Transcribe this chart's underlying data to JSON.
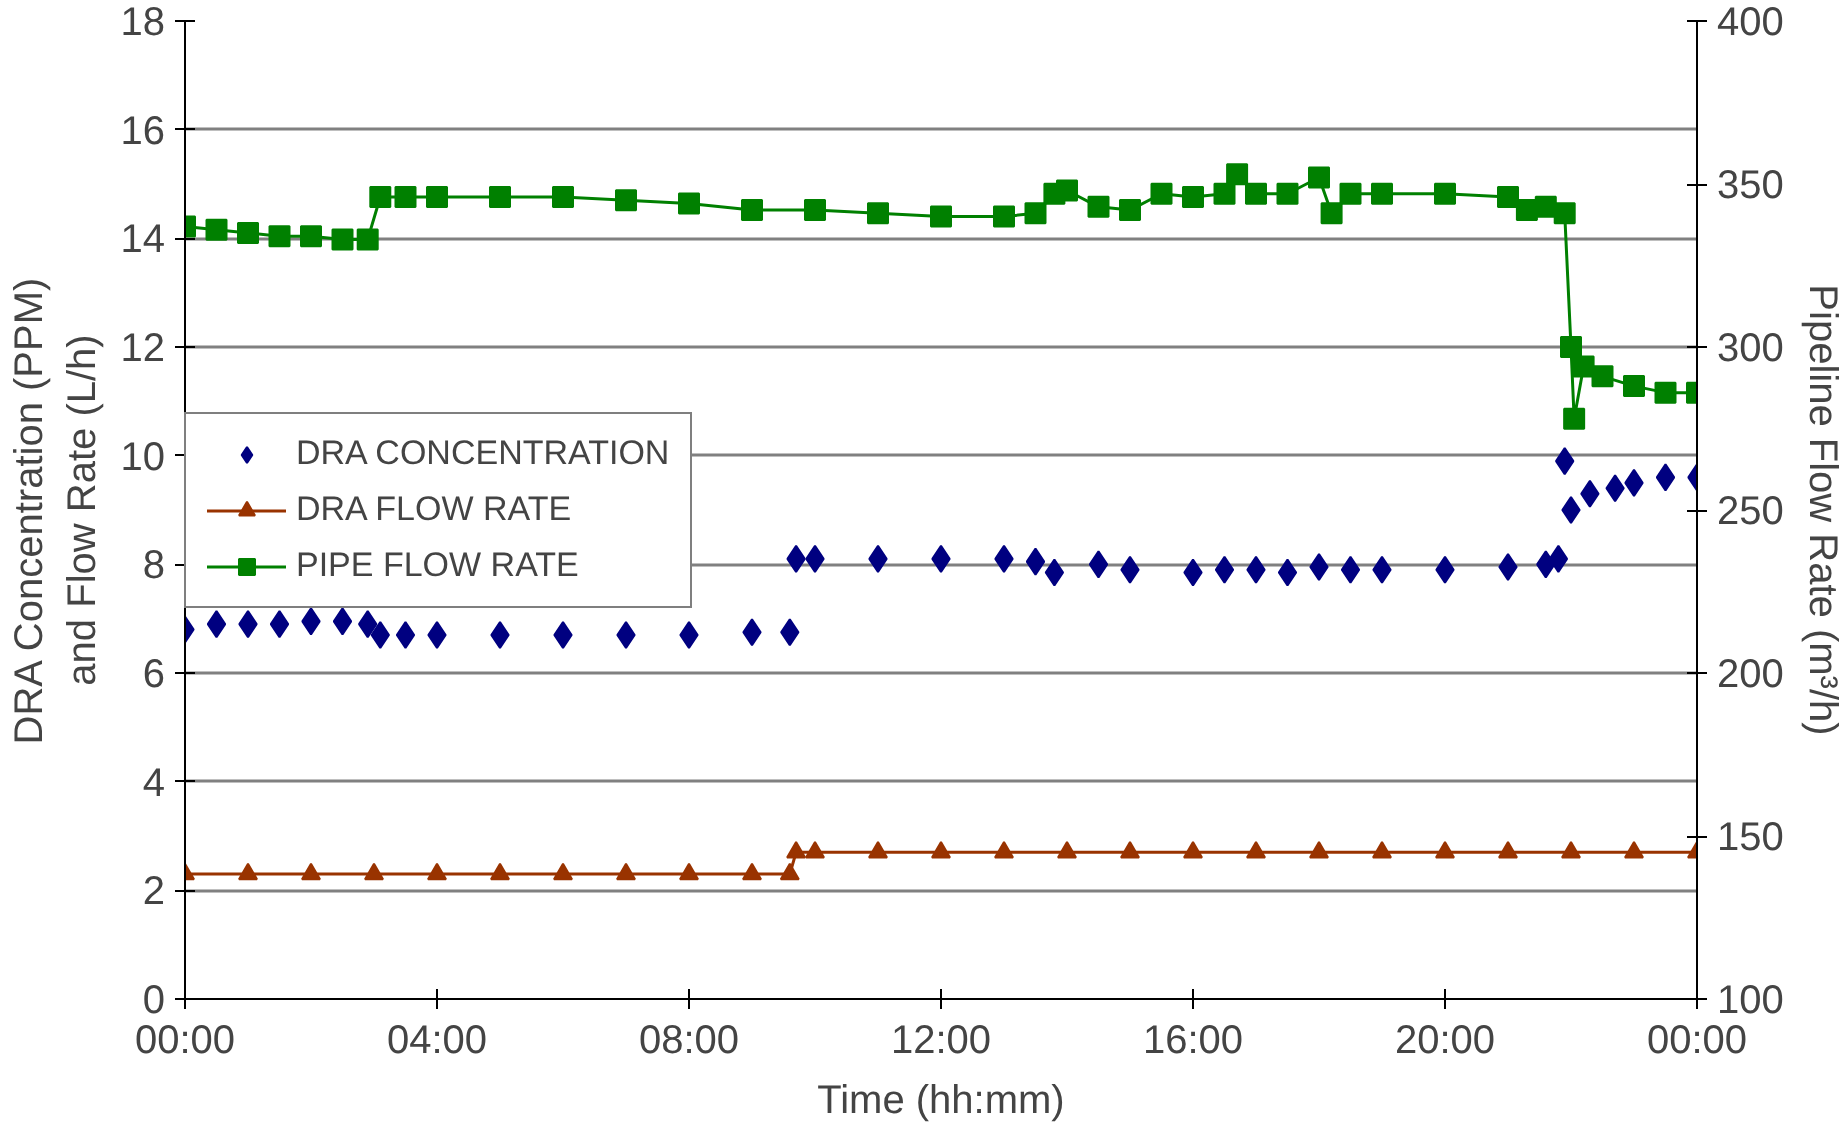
{
  "chart_data": {
    "type": "line",
    "xlabel": "Time (hh:mm)",
    "ylabel": "DRA Concentration (PPM)\nand Flow Rate (L/h)",
    "y2label": "Pipeline Flow Rate (m³/h)",
    "xlim": [
      0,
      24
    ],
    "xticks": [
      {
        "value": 0,
        "label": "00:00"
      },
      {
        "value": 4,
        "label": "04:00"
      },
      {
        "value": 8,
        "label": "08:00"
      },
      {
        "value": 12,
        "label": "12:00"
      },
      {
        "value": 16,
        "label": "16:00"
      },
      {
        "value": 20,
        "label": "20:00"
      },
      {
        "value": 24,
        "label": "00:00"
      }
    ],
    "ylim": [
      0,
      18
    ],
    "yticks": [
      0,
      2,
      4,
      6,
      8,
      10,
      12,
      14,
      16,
      18
    ],
    "y2lim": [
      100,
      400
    ],
    "y2ticks": [
      100,
      150,
      200,
      250,
      300,
      350,
      400
    ],
    "grid": "y",
    "legend": "left",
    "series": [
      {
        "name": "DRA CONCENTRATION",
        "type": "scatter",
        "marker": "diamond",
        "color": "#000080",
        "x": [
          0,
          0.5,
          1,
          1.5,
          2,
          2.5,
          2.9,
          3.1,
          3.5,
          4,
          5,
          6,
          7,
          8,
          9,
          9.6,
          9.7,
          10,
          11,
          12,
          13,
          13.5,
          13.8,
          14.5,
          15,
          16,
          16.5,
          17,
          17.5,
          18,
          18.5,
          19,
          20,
          21,
          21.6,
          21.8,
          21.9,
          22,
          22.3,
          22.7,
          23,
          23.5,
          24
        ],
        "values": [
          6.8,
          6.9,
          6.9,
          6.9,
          6.95,
          6.95,
          6.9,
          6.7,
          6.7,
          6.7,
          6.7,
          6.7,
          6.7,
          6.7,
          6.75,
          6.75,
          8.1,
          8.1,
          8.1,
          8.1,
          8.1,
          8.05,
          7.85,
          8.0,
          7.9,
          7.85,
          7.9,
          7.9,
          7.85,
          7.95,
          7.9,
          7.9,
          7.9,
          7.95,
          8.0,
          8.1,
          9.9,
          9.0,
          9.3,
          9.4,
          9.5,
          9.6,
          9.6
        ]
      },
      {
        "name": "DRA FLOW RATE",
        "marker": "triangle",
        "color": "#993300",
        "x": [
          0,
          1,
          2,
          3,
          4,
          5,
          6,
          7,
          8,
          9,
          9.6,
          9.7,
          10,
          11,
          12,
          13,
          14,
          15,
          16,
          17,
          18,
          19,
          20,
          21,
          22,
          23,
          24
        ],
        "values": [
          2.3,
          2.3,
          2.3,
          2.3,
          2.3,
          2.3,
          2.3,
          2.3,
          2.3,
          2.3,
          2.3,
          2.7,
          2.7,
          2.7,
          2.7,
          2.7,
          2.7,
          2.7,
          2.7,
          2.7,
          2.7,
          2.7,
          2.7,
          2.7,
          2.7,
          2.7,
          2.7
        ]
      },
      {
        "name": "PIPE FLOW RATE",
        "marker": "square",
        "axis": "y2",
        "color": "#008000",
        "x": [
          0,
          0.5,
          1,
          1.5,
          2,
          2.5,
          2.9,
          3.1,
          3.5,
          4,
          5,
          6,
          7,
          8,
          9,
          10,
          11,
          12,
          13,
          13.5,
          13.8,
          14,
          14.5,
          15,
          15.5,
          16,
          16.5,
          16.7,
          17,
          17.5,
          18,
          18.2,
          18.5,
          19,
          20,
          21,
          21.3,
          21.6,
          21.9,
          22,
          22.05,
          22.2,
          22.5,
          23,
          23.5,
          24
        ],
        "values": [
          337,
          336,
          335,
          334,
          334,
          333,
          333,
          346,
          346,
          346,
          346,
          346,
          345,
          344,
          342,
          342,
          341,
          340,
          340,
          341,
          347,
          348,
          343,
          342,
          347,
          346,
          347,
          353,
          347,
          347,
          352,
          341,
          347,
          347,
          347,
          346,
          342,
          343,
          341,
          300,
          278,
          294,
          291,
          288,
          286,
          286
        ]
      }
    ]
  }
}
